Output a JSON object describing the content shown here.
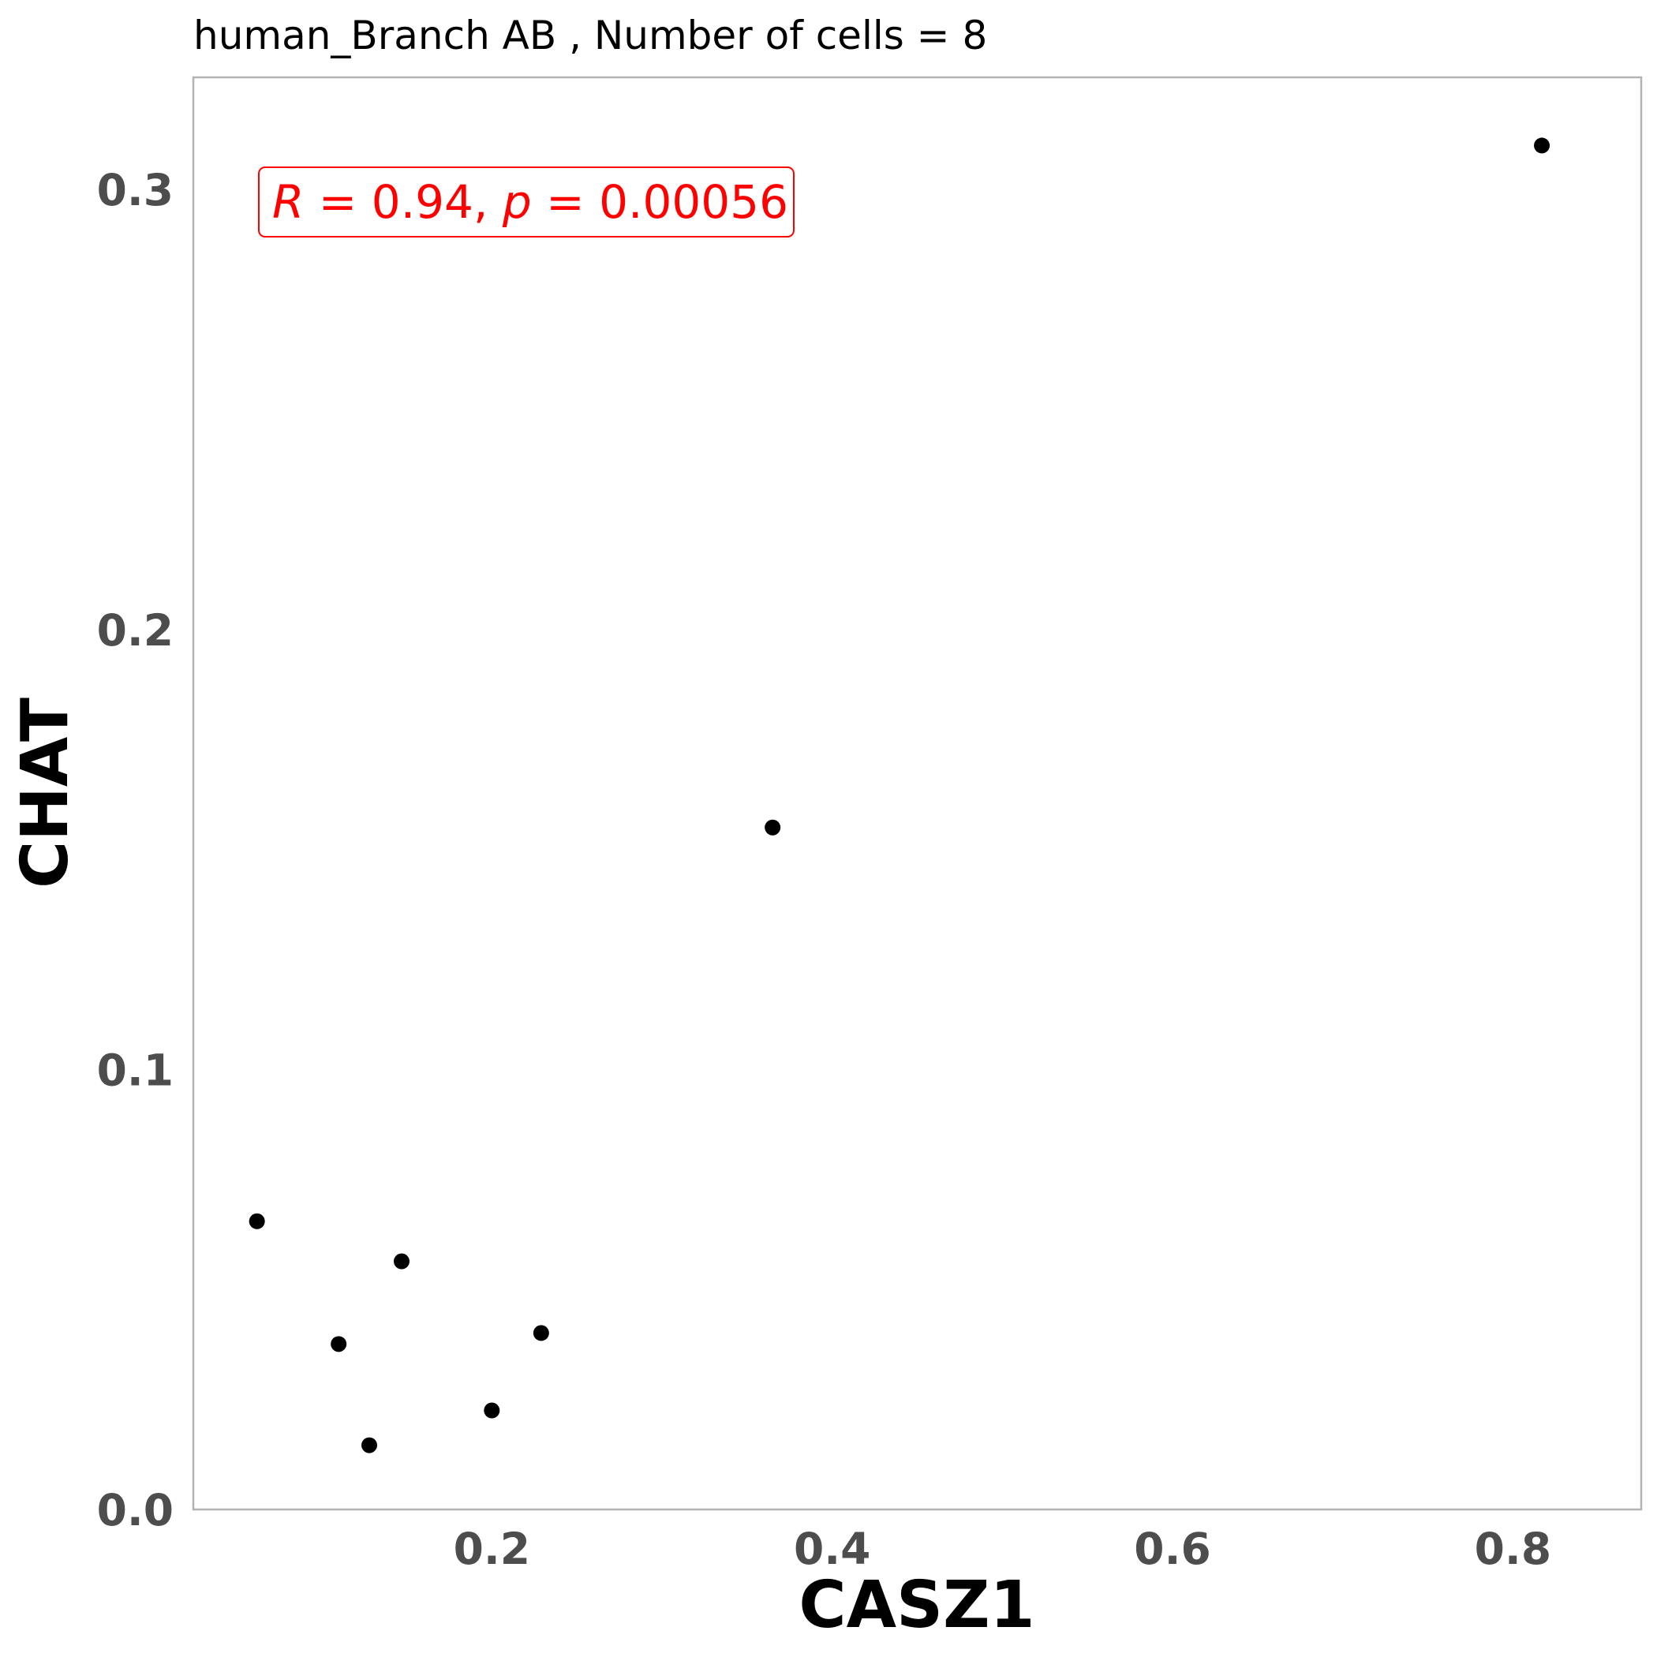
{
  "chart_data": {
    "type": "scatter",
    "title": "human_Branch AB , Number of cells =  8",
    "xlabel": "CASZ1",
    "ylabel": "CHAT",
    "xlim": [
      0.0246,
      0.8754
    ],
    "ylim": [
      0.0,
      0.3255
    ],
    "xticks": [
      0.2,
      0.4,
      0.6,
      0.8
    ],
    "yticks": [
      0.0,
      0.1,
      0.2,
      0.3
    ],
    "xtick_labels": [
      "0.2",
      "0.4",
      "0.6",
      "0.8"
    ],
    "ytick_labels": [
      "0.0",
      "0.1",
      "0.2",
      "0.3"
    ],
    "grid": false,
    "points": [
      {
        "x": 0.062,
        "y": 0.0655
      },
      {
        "x": 0.11,
        "y": 0.0376
      },
      {
        "x": 0.128,
        "y": 0.0146
      },
      {
        "x": 0.147,
        "y": 0.0564
      },
      {
        "x": 0.2,
        "y": 0.0225
      },
      {
        "x": 0.229,
        "y": 0.0401
      },
      {
        "x": 0.365,
        "y": 0.155
      },
      {
        "x": 0.817,
        "y": 0.31
      }
    ],
    "point_color": "#000000",
    "annotation": {
      "r_label": "R",
      "r_value": "0.94",
      "p_label": "p",
      "p_value": "0.00056",
      "color": "#ff0000"
    }
  }
}
